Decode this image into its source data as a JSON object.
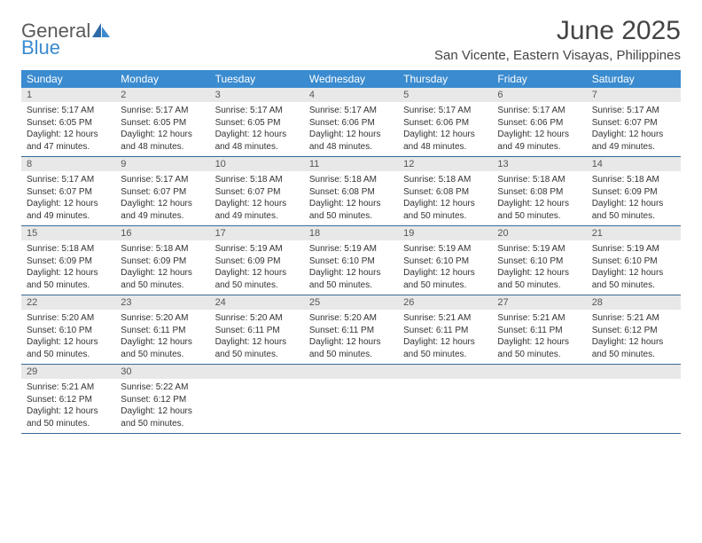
{
  "logo": {
    "general": "General",
    "blue": "Blue"
  },
  "title": "June 2025",
  "location": "San Vicente, Eastern Visayas, Philippines",
  "colors": {
    "header_bg": "#3a8bcf",
    "daynum_bg": "#e8e8e8",
    "week_border": "#3a6a99",
    "logo_blue": "#3a8bcf",
    "logo_gray": "#5a5a5a",
    "text": "#333333"
  },
  "weekdays": [
    "Sunday",
    "Monday",
    "Tuesday",
    "Wednesday",
    "Thursday",
    "Friday",
    "Saturday"
  ],
  "weeks": [
    [
      {
        "n": "1",
        "sr": "5:17 AM",
        "ss": "6:05 PM",
        "dl": "12 hours and 47 minutes."
      },
      {
        "n": "2",
        "sr": "5:17 AM",
        "ss": "6:05 PM",
        "dl": "12 hours and 48 minutes."
      },
      {
        "n": "3",
        "sr": "5:17 AM",
        "ss": "6:05 PM",
        "dl": "12 hours and 48 minutes."
      },
      {
        "n": "4",
        "sr": "5:17 AM",
        "ss": "6:06 PM",
        "dl": "12 hours and 48 minutes."
      },
      {
        "n": "5",
        "sr": "5:17 AM",
        "ss": "6:06 PM",
        "dl": "12 hours and 48 minutes."
      },
      {
        "n": "6",
        "sr": "5:17 AM",
        "ss": "6:06 PM",
        "dl": "12 hours and 49 minutes."
      },
      {
        "n": "7",
        "sr": "5:17 AM",
        "ss": "6:07 PM",
        "dl": "12 hours and 49 minutes."
      }
    ],
    [
      {
        "n": "8",
        "sr": "5:17 AM",
        "ss": "6:07 PM",
        "dl": "12 hours and 49 minutes."
      },
      {
        "n": "9",
        "sr": "5:17 AM",
        "ss": "6:07 PM",
        "dl": "12 hours and 49 minutes."
      },
      {
        "n": "10",
        "sr": "5:18 AM",
        "ss": "6:07 PM",
        "dl": "12 hours and 49 minutes."
      },
      {
        "n": "11",
        "sr": "5:18 AM",
        "ss": "6:08 PM",
        "dl": "12 hours and 50 minutes."
      },
      {
        "n": "12",
        "sr": "5:18 AM",
        "ss": "6:08 PM",
        "dl": "12 hours and 50 minutes."
      },
      {
        "n": "13",
        "sr": "5:18 AM",
        "ss": "6:08 PM",
        "dl": "12 hours and 50 minutes."
      },
      {
        "n": "14",
        "sr": "5:18 AM",
        "ss": "6:09 PM",
        "dl": "12 hours and 50 minutes."
      }
    ],
    [
      {
        "n": "15",
        "sr": "5:18 AM",
        "ss": "6:09 PM",
        "dl": "12 hours and 50 minutes."
      },
      {
        "n": "16",
        "sr": "5:18 AM",
        "ss": "6:09 PM",
        "dl": "12 hours and 50 minutes."
      },
      {
        "n": "17",
        "sr": "5:19 AM",
        "ss": "6:09 PM",
        "dl": "12 hours and 50 minutes."
      },
      {
        "n": "18",
        "sr": "5:19 AM",
        "ss": "6:10 PM",
        "dl": "12 hours and 50 minutes."
      },
      {
        "n": "19",
        "sr": "5:19 AM",
        "ss": "6:10 PM",
        "dl": "12 hours and 50 minutes."
      },
      {
        "n": "20",
        "sr": "5:19 AM",
        "ss": "6:10 PM",
        "dl": "12 hours and 50 minutes."
      },
      {
        "n": "21",
        "sr": "5:19 AM",
        "ss": "6:10 PM",
        "dl": "12 hours and 50 minutes."
      }
    ],
    [
      {
        "n": "22",
        "sr": "5:20 AM",
        "ss": "6:10 PM",
        "dl": "12 hours and 50 minutes."
      },
      {
        "n": "23",
        "sr": "5:20 AM",
        "ss": "6:11 PM",
        "dl": "12 hours and 50 minutes."
      },
      {
        "n": "24",
        "sr": "5:20 AM",
        "ss": "6:11 PM",
        "dl": "12 hours and 50 minutes."
      },
      {
        "n": "25",
        "sr": "5:20 AM",
        "ss": "6:11 PM",
        "dl": "12 hours and 50 minutes."
      },
      {
        "n": "26",
        "sr": "5:21 AM",
        "ss": "6:11 PM",
        "dl": "12 hours and 50 minutes."
      },
      {
        "n": "27",
        "sr": "5:21 AM",
        "ss": "6:11 PM",
        "dl": "12 hours and 50 minutes."
      },
      {
        "n": "28",
        "sr": "5:21 AM",
        "ss": "6:12 PM",
        "dl": "12 hours and 50 minutes."
      }
    ],
    [
      {
        "n": "29",
        "sr": "5:21 AM",
        "ss": "6:12 PM",
        "dl": "12 hours and 50 minutes."
      },
      {
        "n": "30",
        "sr": "5:22 AM",
        "ss": "6:12 PM",
        "dl": "12 hours and 50 minutes."
      },
      null,
      null,
      null,
      null,
      null
    ]
  ],
  "labels": {
    "sunrise": "Sunrise: ",
    "sunset": "Sunset: ",
    "daylight": "Daylight: "
  }
}
